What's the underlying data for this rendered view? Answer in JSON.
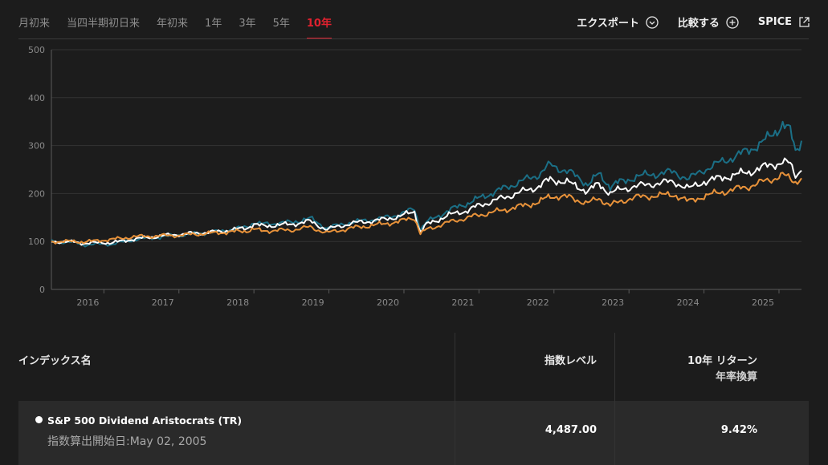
{
  "tabs": [
    {
      "label": "月初来",
      "active": false
    },
    {
      "label": "当四半期初日来",
      "active": false
    },
    {
      "label": "年初来",
      "active": false
    },
    {
      "label": "1年",
      "active": false
    },
    {
      "label": "3年",
      "active": false
    },
    {
      "label": "5年",
      "active": false
    },
    {
      "label": "10年",
      "active": true
    }
  ],
  "actions": {
    "export_label": "エクスポート",
    "compare_label": "比較する",
    "spice_label": "SPICE"
  },
  "colors": {
    "background": "#1c1c1c",
    "accent": "#e0212f",
    "series_teal": "#1b6f86",
    "series_white": "#ffffff",
    "series_orange": "#e8923a"
  },
  "chart_data": {
    "type": "line",
    "title": "",
    "xlabel": "",
    "ylabel": "",
    "ylim": [
      0,
      500
    ],
    "yticks": [
      "0",
      "100",
      "200",
      "300",
      "400",
      "500"
    ],
    "xticks": [
      "2016",
      "2017",
      "2018",
      "2019",
      "2020",
      "2021",
      "2022",
      "2023",
      "2024",
      "2025"
    ],
    "xrange": [
      2015.3,
      2025.3
    ],
    "grid": true,
    "legend": "none",
    "series": [
      {
        "color": "#1b6f86",
        "points": [
          [
            2015.3,
            100
          ],
          [
            2015.6,
            98
          ],
          [
            2015.75,
            93
          ],
          [
            2016.0,
            95
          ],
          [
            2016.1,
            94
          ],
          [
            2016.4,
            104
          ],
          [
            2016.8,
            110
          ],
          [
            2017.0,
            113
          ],
          [
            2017.5,
            120
          ],
          [
            2017.9,
            130
          ],
          [
            2018.0,
            140
          ],
          [
            2018.1,
            136
          ],
          [
            2018.5,
            140
          ],
          [
            2018.75,
            148
          ],
          [
            2018.97,
            128
          ],
          [
            2019.3,
            140
          ],
          [
            2019.7,
            148
          ],
          [
            2019.95,
            157
          ],
          [
            2020.14,
            168
          ],
          [
            2020.2,
            135
          ],
          [
            2020.22,
            125
          ],
          [
            2020.3,
            140
          ],
          [
            2020.6,
            165
          ],
          [
            2020.85,
            180
          ],
          [
            2021.0,
            190
          ],
          [
            2021.4,
            215
          ],
          [
            2021.8,
            240
          ],
          [
            2021.95,
            260
          ],
          [
            2022.2,
            245
          ],
          [
            2022.45,
            220
          ],
          [
            2022.6,
            240
          ],
          [
            2022.75,
            215
          ],
          [
            2022.9,
            225
          ],
          [
            2023.1,
            235
          ],
          [
            2023.3,
            240
          ],
          [
            2023.6,
            245
          ],
          [
            2023.8,
            230
          ],
          [
            2024.0,
            250
          ],
          [
            2024.3,
            270
          ],
          [
            2024.6,
            290
          ],
          [
            2024.9,
            320
          ],
          [
            2025.05,
            345
          ],
          [
            2025.15,
            330
          ],
          [
            2025.22,
            290
          ],
          [
            2025.3,
            310
          ]
        ]
      },
      {
        "color": "#ffffff",
        "points": [
          [
            2015.3,
            100
          ],
          [
            2015.6,
            99
          ],
          [
            2015.75,
            96
          ],
          [
            2016.0,
            98
          ],
          [
            2016.1,
            97
          ],
          [
            2016.4,
            105
          ],
          [
            2016.8,
            112
          ],
          [
            2017.0,
            115
          ],
          [
            2017.5,
            120
          ],
          [
            2017.9,
            128
          ],
          [
            2018.0,
            136
          ],
          [
            2018.1,
            132
          ],
          [
            2018.5,
            136
          ],
          [
            2018.75,
            142
          ],
          [
            2018.97,
            125
          ],
          [
            2019.3,
            138
          ],
          [
            2019.7,
            145
          ],
          [
            2019.95,
            153
          ],
          [
            2020.14,
            162
          ],
          [
            2020.2,
            130
          ],
          [
            2020.22,
            120
          ],
          [
            2020.3,
            135
          ],
          [
            2020.6,
            155
          ],
          [
            2020.85,
            165
          ],
          [
            2021.0,
            175
          ],
          [
            2021.4,
            195
          ],
          [
            2021.8,
            215
          ],
          [
            2021.95,
            230
          ],
          [
            2022.2,
            222
          ],
          [
            2022.45,
            205
          ],
          [
            2022.6,
            220
          ],
          [
            2022.75,
            200
          ],
          [
            2022.9,
            210
          ],
          [
            2023.1,
            215
          ],
          [
            2023.3,
            220
          ],
          [
            2023.6,
            225
          ],
          [
            2023.8,
            210
          ],
          [
            2024.0,
            225
          ],
          [
            2024.3,
            235
          ],
          [
            2024.6,
            245
          ],
          [
            2024.9,
            260
          ],
          [
            2025.05,
            265
          ],
          [
            2025.15,
            262
          ],
          [
            2025.22,
            240
          ],
          [
            2025.3,
            248
          ]
        ]
      },
      {
        "color": "#e8923a",
        "points": [
          [
            2015.3,
            100
          ],
          [
            2015.6,
            100
          ],
          [
            2015.75,
            99
          ],
          [
            2016.0,
            103
          ],
          [
            2016.1,
            104
          ],
          [
            2016.4,
            110
          ],
          [
            2016.8,
            112
          ],
          [
            2017.0,
            113
          ],
          [
            2017.5,
            118
          ],
          [
            2017.9,
            122
          ],
          [
            2018.0,
            126
          ],
          [
            2018.1,
            122
          ],
          [
            2018.5,
            124
          ],
          [
            2018.75,
            130
          ],
          [
            2018.97,
            118
          ],
          [
            2019.3,
            128
          ],
          [
            2019.7,
            136
          ],
          [
            2019.95,
            142
          ],
          [
            2020.14,
            150
          ],
          [
            2020.2,
            125
          ],
          [
            2020.22,
            115
          ],
          [
            2020.3,
            125
          ],
          [
            2020.6,
            140
          ],
          [
            2020.85,
            150
          ],
          [
            2021.0,
            155
          ],
          [
            2021.4,
            168
          ],
          [
            2021.8,
            182
          ],
          [
            2021.95,
            195
          ],
          [
            2022.2,
            192
          ],
          [
            2022.45,
            180
          ],
          [
            2022.6,
            190
          ],
          [
            2022.75,
            175
          ],
          [
            2022.9,
            185
          ],
          [
            2023.1,
            192
          ],
          [
            2023.3,
            195
          ],
          [
            2023.6,
            198
          ],
          [
            2023.8,
            183
          ],
          [
            2024.0,
            195
          ],
          [
            2024.3,
            205
          ],
          [
            2024.6,
            215
          ],
          [
            2024.9,
            230
          ],
          [
            2025.05,
            238
          ],
          [
            2025.15,
            232
          ],
          [
            2025.22,
            225
          ],
          [
            2025.3,
            232
          ]
        ]
      }
    ]
  },
  "table": {
    "headers": {
      "name": "インデックス名",
      "level": "指数レベル",
      "return_line1": "10年 リターン",
      "return_line2": "年率換算"
    },
    "rows": [
      {
        "name": "S&P 500 Dividend Aristocrats (TR)",
        "since": "指数算出開始日:May 02, 2005",
        "level": "4,487.00",
        "return": "9.42%"
      }
    ]
  }
}
